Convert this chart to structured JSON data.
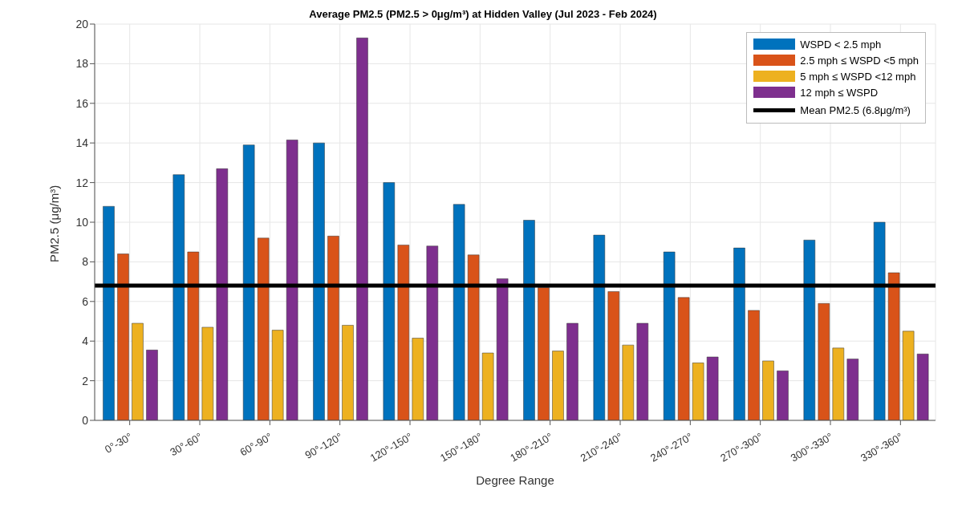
{
  "chart_data": {
    "type": "bar",
    "title": "Average PM2.5 (PM2.5 > 0μg/m³) at Hidden Valley (Jul 2023 - Feb 2024)",
    "xlabel": "Degree Range",
    "ylabel": "PM2.5 (μg/m³)",
    "categories": [
      "0°-30°",
      "30°-60°",
      "60°-90°",
      "90°-120°",
      "120°-150°",
      "150°-180°",
      "180°-210°",
      "210°-240°",
      "240°-270°",
      "270°-300°",
      "300°-330°",
      "330°-360°"
    ],
    "series": [
      {
        "name": "WSPD < 2.5 mph",
        "color": "#0072bd",
        "values": [
          10.8,
          12.4,
          13.9,
          14.0,
          12.0,
          10.9,
          10.1,
          9.35,
          8.5,
          8.7,
          9.1,
          10.0
        ]
      },
      {
        "name": "2.5 mph ≤ WSPD <5 mph",
        "color": "#d95319",
        "values": [
          8.4,
          8.5,
          9.2,
          9.3,
          8.85,
          8.35,
          6.7,
          6.5,
          6.2,
          5.55,
          5.9,
          7.45
        ]
      },
      {
        "name": "5 mph ≤ WSPD <12 mph",
        "color": "#edb120",
        "values": [
          4.9,
          4.7,
          4.55,
          4.8,
          4.15,
          3.4,
          3.5,
          3.8,
          2.9,
          3.0,
          3.65,
          4.5
        ]
      },
      {
        "name": "12 mph ≤ WSPD",
        "color": "#7e2f8e",
        "values": [
          3.55,
          12.7,
          14.15,
          19.3,
          8.8,
          7.15,
          4.9,
          4.9,
          3.2,
          2.5,
          3.1,
          3.35
        ]
      }
    ],
    "ylim": [
      0,
      20
    ],
    "yticks": [
      0,
      2,
      4,
      6,
      8,
      10,
      12,
      14,
      16,
      18,
      20
    ],
    "ref_lines": [
      {
        "axis": "y",
        "value": 6.8,
        "label": "Mean PM2.5 (6.8μg/m³)",
        "color": "#000000"
      }
    ],
    "grid": true,
    "legend": "top right"
  }
}
